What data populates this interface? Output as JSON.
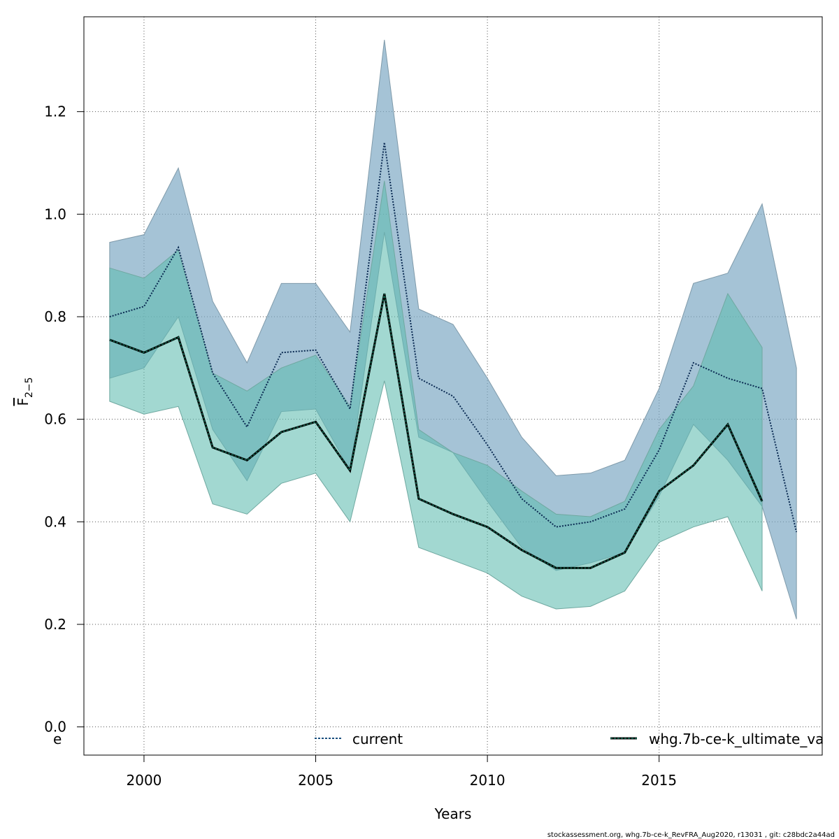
{
  "chart_data": {
    "type": "line",
    "xlabel": "Years",
    "ylabel": "F",
    "ylabel_subscript": "2−5",
    "xlim": [
      1998.25,
      2019.75
    ],
    "ylim": [
      -0.055,
      1.385
    ],
    "xticks": [
      2000,
      2005,
      2010,
      2015
    ],
    "yticks": [
      0.0,
      0.2,
      0.4,
      0.6,
      0.8,
      1.0,
      1.2
    ],
    "ytick_labels": [
      "0.0",
      "0.2",
      "0.4",
      "0.6",
      "0.8",
      "1.0",
      "1.2"
    ],
    "grid": true,
    "legend_position": "bottom",
    "legend_labels": [
      "e",
      "current",
      "whg.7b-ce-k_ultimate_va"
    ],
    "colors": {
      "current_band": "#7aa7c2",
      "current_band_edge": "#7f9aaa",
      "current_line": "#0a2a52",
      "ultimate_band": "#5fbcb0",
      "ultimate_band_edge": "#6fa8a0",
      "ultimate_line": "#0a3a22",
      "ultimate_line_shadow": "#000000"
    },
    "series": [
      {
        "name": "current",
        "x": [
          1999,
          2000,
          2001,
          2002,
          2003,
          2004,
          2005,
          2006,
          2007,
          2008,
          2009,
          2010,
          2011,
          2012,
          2013,
          2014,
          2015,
          2016,
          2017,
          2018,
          2019
        ],
        "values": [
          0.8,
          0.82,
          0.935,
          0.69,
          0.585,
          0.73,
          0.735,
          0.62,
          1.14,
          0.68,
          0.645,
          0.55,
          0.445,
          0.39,
          0.4,
          0.425,
          0.54,
          0.71,
          0.68,
          0.66,
          0.38
        ],
        "upper": [
          0.945,
          0.96,
          1.09,
          0.83,
          0.71,
          0.865,
          0.865,
          0.77,
          1.34,
          0.815,
          0.785,
          0.68,
          0.565,
          0.49,
          0.495,
          0.52,
          0.66,
          0.865,
          0.885,
          1.02,
          0.7
        ],
        "lower": [
          0.68,
          0.7,
          0.8,
          0.58,
          0.48,
          0.615,
          0.62,
          0.5,
          0.965,
          0.565,
          0.535,
          0.44,
          0.35,
          0.305,
          0.32,
          0.34,
          0.45,
          0.59,
          0.52,
          0.43,
          0.21
        ]
      },
      {
        "name": "whg.7b-ce-k_ultimate_va",
        "x": [
          1999,
          2000,
          2001,
          2002,
          2003,
          2004,
          2005,
          2006,
          2007,
          2008,
          2009,
          2010,
          2011,
          2012,
          2013,
          2014,
          2015,
          2016,
          2017,
          2018
        ],
        "values": [
          0.755,
          0.73,
          0.76,
          0.545,
          0.52,
          0.575,
          0.595,
          0.5,
          0.845,
          0.445,
          0.415,
          0.39,
          0.345,
          0.31,
          0.31,
          0.34,
          0.46,
          0.51,
          0.59,
          0.44
        ],
        "upper": [
          0.895,
          0.875,
          0.93,
          0.69,
          0.655,
          0.7,
          0.725,
          0.625,
          1.065,
          0.58,
          0.535,
          0.51,
          0.46,
          0.415,
          0.41,
          0.44,
          0.58,
          0.665,
          0.845,
          0.74
        ],
        "lower": [
          0.635,
          0.61,
          0.625,
          0.435,
          0.415,
          0.475,
          0.495,
          0.4,
          0.675,
          0.35,
          0.325,
          0.3,
          0.255,
          0.23,
          0.235,
          0.265,
          0.36,
          0.39,
          0.41,
          0.265
        ]
      }
    ]
  },
  "footer": "stockassessment.org, whg.7b-ce-k_RevFRA_Aug2020, r13031 , git: c28bdc2a44ad"
}
